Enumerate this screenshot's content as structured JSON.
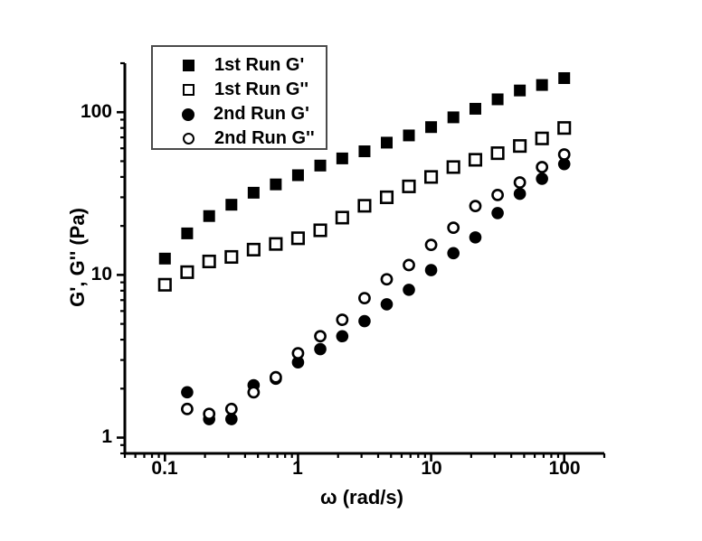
{
  "figure": {
    "background": "#ffffff",
    "axis_color": "#000000",
    "marker_color": "#000000"
  },
  "legend": {
    "position": "top-left",
    "items": [
      {
        "label": "1st Run G'",
        "marker": "filled-square"
      },
      {
        "label": "1st Run G''",
        "marker": "open-square"
      },
      {
        "label": "2nd Run G'",
        "marker": "filled-circle"
      },
      {
        "label": "2nd Run G''",
        "marker": "open-circle"
      }
    ]
  },
  "chart_data": {
    "type": "scatter",
    "x_scale": "log",
    "y_scale": "log",
    "xlabel": "ω (rad/s)",
    "ylabel": "G', G'' (Pa)",
    "xlim": [
      0.05,
      200
    ],
    "ylim": [
      0.8,
      200
    ],
    "grid": false,
    "x_major_ticks": [
      0.1,
      1,
      10,
      100
    ],
    "y_major_ticks": [
      1,
      10,
      100
    ],
    "x_tick_labels": [
      "0.1",
      "1",
      "10",
      "100"
    ],
    "y_tick_labels": [
      "100",
      "10",
      "1"
    ],
    "series": [
      {
        "name": "1st Run G'",
        "marker": "square",
        "fill": "filled",
        "color": "#000000",
        "x": [
          0.1,
          0.147,
          0.215,
          0.316,
          0.464,
          0.681,
          1,
          1.47,
          2.15,
          3.16,
          4.64,
          6.81,
          10,
          14.7,
          21.5,
          31.6,
          46.4,
          68.1,
          100
        ],
        "y": [
          12.6,
          18,
          23,
          27,
          32,
          36,
          41,
          47,
          52,
          57.5,
          65,
          72,
          81,
          93,
          105,
          120,
          136,
          147,
          162
        ]
      },
      {
        "name": "1st Run G''",
        "marker": "square",
        "fill": "open",
        "color": "#000000",
        "x": [
          0.1,
          0.147,
          0.215,
          0.316,
          0.464,
          0.681,
          1,
          1.47,
          2.15,
          3.16,
          4.64,
          6.81,
          10,
          14.7,
          21.5,
          31.6,
          46.4,
          68.1,
          100
        ],
        "y": [
          8.7,
          10.4,
          12.1,
          12.9,
          14.3,
          15.5,
          16.8,
          18.8,
          22.5,
          26.6,
          30,
          35,
          40,
          46,
          51,
          56,
          62,
          69,
          80
        ]
      },
      {
        "name": "2nd Run G'",
        "marker": "circle",
        "fill": "filled",
        "color": "#000000",
        "x": [
          0.147,
          0.215,
          0.316,
          0.464,
          0.681,
          1,
          1.47,
          2.15,
          3.16,
          4.64,
          6.81,
          10,
          14.7,
          21.5,
          31.6,
          46.4,
          68.1,
          100
        ],
        "y": [
          1.9,
          1.3,
          1.3,
          2.1,
          2.3,
          2.9,
          3.5,
          4.2,
          5.2,
          6.6,
          8.1,
          10.7,
          13.6,
          17,
          24,
          31.5,
          39,
          48
        ]
      },
      {
        "name": "2nd Run G''",
        "marker": "circle",
        "fill": "open",
        "color": "#000000",
        "x": [
          0.147,
          0.215,
          0.316,
          0.464,
          0.681,
          1,
          1.47,
          2.15,
          3.16,
          4.64,
          6.81,
          10,
          14.7,
          21.5,
          31.6,
          46.4,
          68.1,
          100
        ],
        "y": [
          1.5,
          1.4,
          1.5,
          1.9,
          2.35,
          3.3,
          4.2,
          5.3,
          7.2,
          9.4,
          11.5,
          15.3,
          19.5,
          26.5,
          31,
          37,
          46,
          55
        ]
      }
    ]
  }
}
